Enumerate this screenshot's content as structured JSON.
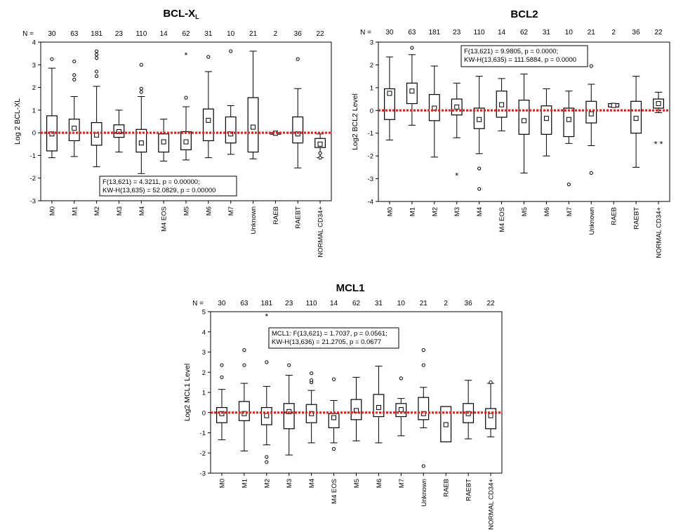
{
  "colors": {
    "reference_line": "#e8231e",
    "box": "#000000",
    "background": "#ffffff"
  },
  "chart_data": [
    {
      "id": "bclxl",
      "type": "box",
      "title": "BCL-X",
      "title_suffix": "L",
      "ylabel": "Log 2 BCL-XL",
      "n_prefix": "N =",
      "ylim": [
        -3,
        4
      ],
      "yticks": [
        -3,
        -2,
        -1,
        0,
        1,
        2,
        3,
        4
      ],
      "reference_line": 0,
      "categories": [
        "M0",
        "M1",
        "M2",
        "M3",
        "M4",
        "M4 EOS",
        "M5",
        "M6",
        "M7",
        "Unknown",
        "RAEB",
        "RAEBT",
        "NORMAL CD34+"
      ],
      "n": [
        "30",
        "63",
        "181",
        "23",
        "110",
        "14",
        "62",
        "31",
        "10",
        "21",
        "2",
        "36",
        "22"
      ],
      "boxes": [
        {
          "wlo": -1.1,
          "q1": -0.8,
          "med": -0.05,
          "q3": 0.75,
          "whi": 2.85,
          "outliers": [
            3.25
          ],
          "extremes": []
        },
        {
          "wlo": -1.05,
          "q1": -0.35,
          "med": 0.2,
          "q3": 0.6,
          "whi": 1.6,
          "outliers": [
            2.35,
            2.55,
            3.15
          ],
          "extremes": []
        },
        {
          "wlo": -1.5,
          "q1": -0.55,
          "med": -0.1,
          "q3": 0.45,
          "whi": 2.05,
          "outliers": [
            2.5,
            2.7,
            3.3,
            3.45,
            3.6
          ],
          "extremes": []
        },
        {
          "wlo": -0.85,
          "q1": -0.2,
          "med": 0.05,
          "q3": 0.35,
          "whi": 1.0,
          "outliers": [],
          "extremes": []
        },
        {
          "wlo": -1.8,
          "q1": -0.85,
          "med": -0.45,
          "q3": 0.15,
          "whi": 1.6,
          "outliers": [
            1.8,
            1.95,
            3.0
          ],
          "extremes": []
        },
        {
          "wlo": -1.25,
          "q1": -0.85,
          "med": -0.4,
          "q3": -0.05,
          "whi": 0.6,
          "outliers": [],
          "extremes": []
        },
        {
          "wlo": -1.2,
          "q1": -0.75,
          "med": -0.4,
          "q3": 0.05,
          "whi": 1.15,
          "outliers": [
            1.55
          ],
          "extremes": [
            3.45
          ]
        },
        {
          "wlo": -1.1,
          "q1": -0.35,
          "med": 0.55,
          "q3": 1.05,
          "whi": 2.7,
          "outliers": [
            3.35
          ],
          "extremes": []
        },
        {
          "wlo": -0.95,
          "q1": -0.45,
          "med": -0.05,
          "q3": 0.7,
          "whi": 1.2,
          "outliers": [
            3.6
          ],
          "extremes": []
        },
        {
          "wlo": -1.15,
          "q1": -0.85,
          "med": 0.25,
          "q3": 1.55,
          "whi": 3.6,
          "outliers": [],
          "extremes": []
        },
        {
          "wlo": -0.05,
          "q1": -0.05,
          "med": -0.02,
          "q3": 0.0,
          "whi": 0.0,
          "outliers": [],
          "extremes": []
        },
        {
          "wlo": -1.55,
          "q1": -0.45,
          "med": -0.05,
          "q3": 0.7,
          "whi": 1.95,
          "outliers": [
            3.25
          ],
          "extremes": []
        },
        {
          "wlo": -1.1,
          "q1": -0.65,
          "med": -0.5,
          "q3": -0.25,
          "whi": -0.05,
          "outliers": [
            -0.9,
            -1.1
          ],
          "extremes": []
        }
      ],
      "stats": [
        "F(13,621) = 4.3211, p = 0.00000;",
        "KW-H(13,635) = 52.0829, p = 0.00000"
      ]
    },
    {
      "id": "bcl2",
      "type": "box",
      "title": "BCL2",
      "title_suffix": "",
      "ylabel": "Log2 BCL2 Level",
      "n_prefix": "N =",
      "ylim": [
        -4,
        3
      ],
      "yticks": [
        -4,
        -3,
        -2,
        -1,
        0,
        1,
        2,
        3
      ],
      "reference_line": 0,
      "categories": [
        "M0",
        "M1",
        "M2",
        "M3",
        "M4",
        "M4 EOS",
        "M5",
        "M6",
        "M7",
        "Unknown",
        "RAEB",
        "RAEBT",
        "NORMAL CD34+"
      ],
      "n": [
        "30",
        "63",
        "181",
        "23",
        "110",
        "14",
        "62",
        "31",
        "10",
        "21",
        "2",
        "36",
        "22"
      ],
      "boxes": [
        {
          "wlo": -1.3,
          "q1": -0.4,
          "med": 0.75,
          "q3": 0.95,
          "whi": 2.35,
          "outliers": [],
          "extremes": []
        },
        {
          "wlo": -0.65,
          "q1": 0.3,
          "med": 0.85,
          "q3": 1.2,
          "whi": 2.45,
          "outliers": [
            2.75
          ],
          "extremes": []
        },
        {
          "wlo": -2.05,
          "q1": -0.45,
          "med": 0.1,
          "q3": 0.7,
          "whi": 1.95,
          "outliers": [],
          "extremes": []
        },
        {
          "wlo": -1.2,
          "q1": -0.2,
          "med": 0.15,
          "q3": 0.5,
          "whi": 1.2,
          "outliers": [],
          "extremes": [
            -2.85
          ]
        },
        {
          "wlo": -1.9,
          "q1": -0.8,
          "med": -0.4,
          "q3": 0.1,
          "whi": 1.5,
          "outliers": [
            -2.55,
            -3.45
          ],
          "extremes": []
        },
        {
          "wlo": -0.9,
          "q1": -0.3,
          "med": 0.25,
          "q3": 0.85,
          "whi": 1.4,
          "outliers": [],
          "extremes": []
        },
        {
          "wlo": -2.75,
          "q1": -1.05,
          "med": -0.45,
          "q3": 0.45,
          "whi": 1.6,
          "outliers": [],
          "extremes": []
        },
        {
          "wlo": -2.0,
          "q1": -1.05,
          "med": -0.35,
          "q3": 0.2,
          "whi": 0.95,
          "outliers": [],
          "extremes": []
        },
        {
          "wlo": -1.45,
          "q1": -1.15,
          "med": -0.4,
          "q3": 0.1,
          "whi": 0.85,
          "outliers": [
            -3.25
          ],
          "extremes": []
        },
        {
          "wlo": -1.55,
          "q1": -0.55,
          "med": -0.15,
          "q3": 0.4,
          "whi": 1.15,
          "outliers": [
            1.95,
            -2.75
          ],
          "extremes": []
        },
        {
          "wlo": 0.15,
          "q1": 0.15,
          "med": 0.22,
          "q3": 0.3,
          "whi": 0.3,
          "outliers": [],
          "extremes": []
        },
        {
          "wlo": -2.5,
          "q1": -1.0,
          "med": -0.35,
          "q3": 0.4,
          "whi": 1.5,
          "outliers": [],
          "extremes": []
        },
        {
          "wlo": -0.1,
          "q1": 0.1,
          "med": 0.3,
          "q3": 0.5,
          "whi": 0.8,
          "outliers": [],
          "extremes": [
            -1.45,
            -1.45
          ]
        }
      ],
      "stats": [
        "F(13,621) = 9.9805, p = 0.0000;",
        "KW-H(13,635) = 111.5884, p = 0.0000"
      ]
    },
    {
      "id": "mcl1",
      "type": "box",
      "title": "MCL1",
      "title_suffix": "",
      "ylabel": "Log2 MCL1 Level",
      "n_prefix": "N =",
      "ylim": [
        -3,
        5
      ],
      "yticks": [
        -3,
        -2,
        -1,
        0,
        1,
        2,
        3,
        4,
        5
      ],
      "reference_line": 0,
      "categories": [
        "M0",
        "M1",
        "M2",
        "M3",
        "M4",
        "M4 EOS",
        "M5",
        "M6",
        "M7",
        "Unknown",
        "RAEB",
        "RAEBT",
        "NORMAL CD34+"
      ],
      "n": [
        "30",
        "63",
        "181",
        "23",
        "110",
        "14",
        "62",
        "31",
        "10",
        "21",
        "2",
        "36",
        "22"
      ],
      "boxes": [
        {
          "wlo": -1.35,
          "q1": -0.5,
          "med": -0.05,
          "q3": 0.25,
          "whi": 1.15,
          "outliers": [
            1.75,
            2.35
          ],
          "extremes": []
        },
        {
          "wlo": -1.9,
          "q1": -0.4,
          "med": -0.05,
          "q3": 0.55,
          "whi": 1.45,
          "outliers": [
            2.35,
            3.1
          ],
          "extremes": []
        },
        {
          "wlo": -1.6,
          "q1": -0.6,
          "med": -0.15,
          "q3": 0.25,
          "whi": 1.3,
          "outliers": [
            2.5,
            -2.2,
            -2.45
          ],
          "extremes": [
            4.8
          ]
        },
        {
          "wlo": -2.1,
          "q1": -0.8,
          "med": 0.05,
          "q3": 0.45,
          "whi": 1.85,
          "outliers": [
            2.35
          ],
          "extremes": []
        },
        {
          "wlo": -1.5,
          "q1": -0.5,
          "med": -0.05,
          "q3": 0.4,
          "whi": 1.1,
          "outliers": [
            1.5,
            1.6,
            1.95
          ],
          "extremes": []
        },
        {
          "wlo": -1.5,
          "q1": -0.75,
          "med": -0.25,
          "q3": -0.05,
          "whi": 0.6,
          "outliers": [
            1.65,
            -1.8
          ],
          "extremes": []
        },
        {
          "wlo": -1.4,
          "q1": -0.35,
          "med": 0.1,
          "q3": 0.65,
          "whi": 1.75,
          "outliers": [],
          "extremes": []
        },
        {
          "wlo": -1.5,
          "q1": -0.2,
          "med": 0.25,
          "q3": 0.9,
          "whi": 2.3,
          "outliers": [],
          "extremes": []
        },
        {
          "wlo": -1.15,
          "q1": -0.2,
          "med": 0.15,
          "q3": 0.45,
          "whi": 0.7,
          "outliers": [
            1.7
          ],
          "extremes": []
        },
        {
          "wlo": -0.75,
          "q1": -0.35,
          "med": -0.05,
          "q3": 0.75,
          "whi": 1.25,
          "outliers": [
            2.35,
            3.1,
            -2.65
          ],
          "extremes": []
        },
        {
          "wlo": -1.45,
          "q1": -1.45,
          "med": -0.6,
          "q3": 0.3,
          "whi": 0.3,
          "outliers": [],
          "extremes": []
        },
        {
          "wlo": -1.3,
          "q1": -0.5,
          "med": -0.05,
          "q3": 0.45,
          "whi": 1.6,
          "outliers": [],
          "extremes": []
        },
        {
          "wlo": -1.2,
          "q1": -0.8,
          "med": -0.15,
          "q3": 0.2,
          "whi": 1.45,
          "outliers": [
            1.5
          ],
          "extremes": []
        }
      ],
      "stats": [
        "MCL1:  F(13,621) = 1.7037, p = 0.0561;",
        "KW-H(13,636) = 21.2705, p = 0.0677"
      ]
    }
  ]
}
